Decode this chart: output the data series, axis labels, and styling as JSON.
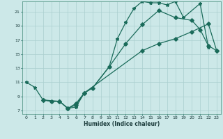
{
  "xlabel": "Humidex (Indice chaleur)",
  "xlim": [
    -0.5,
    23.5
  ],
  "ylim": [
    6.5,
    22.5
  ],
  "xticks": [
    0,
    1,
    2,
    3,
    4,
    5,
    6,
    7,
    8,
    9,
    10,
    11,
    12,
    13,
    14,
    15,
    16,
    17,
    18,
    19,
    20,
    21,
    22,
    23
  ],
  "yticks": [
    7,
    9,
    11,
    13,
    15,
    17,
    19,
    21
  ],
  "bg_color": "#cce8e8",
  "grid_color": "#aacfcf",
  "line_color": "#1a6b5a",
  "line1_x": [
    0,
    1,
    2,
    3,
    4,
    5,
    6,
    7,
    8,
    10,
    11,
    12,
    13,
    14,
    15,
    16,
    17,
    18,
    19,
    21,
    22
  ],
  "line1_y": [
    11,
    10.3,
    8.5,
    8.3,
    8.3,
    7.3,
    7.5,
    9.5,
    10.2,
    13.2,
    17.2,
    19.5,
    21.5,
    22.5,
    22.3,
    22.3,
    22.0,
    22.5,
    20.2,
    22.2,
    16.0
  ],
  "line2_x": [
    2,
    3,
    4,
    5,
    6,
    7,
    14,
    16,
    18,
    20,
    22,
    23
  ],
  "line2_y": [
    8.5,
    8.3,
    8.3,
    7.3,
    8.0,
    9.5,
    15.5,
    16.5,
    17.2,
    18.2,
    19.3,
    15.5
  ],
  "line3_x": [
    2,
    4,
    5,
    6,
    7,
    8,
    10,
    12,
    14,
    16,
    18,
    20,
    21,
    22,
    23
  ],
  "line3_y": [
    8.5,
    8.3,
    7.3,
    7.8,
    9.5,
    10.2,
    13.2,
    16.5,
    19.2,
    21.2,
    20.2,
    19.8,
    18.5,
    16.2,
    15.5
  ]
}
